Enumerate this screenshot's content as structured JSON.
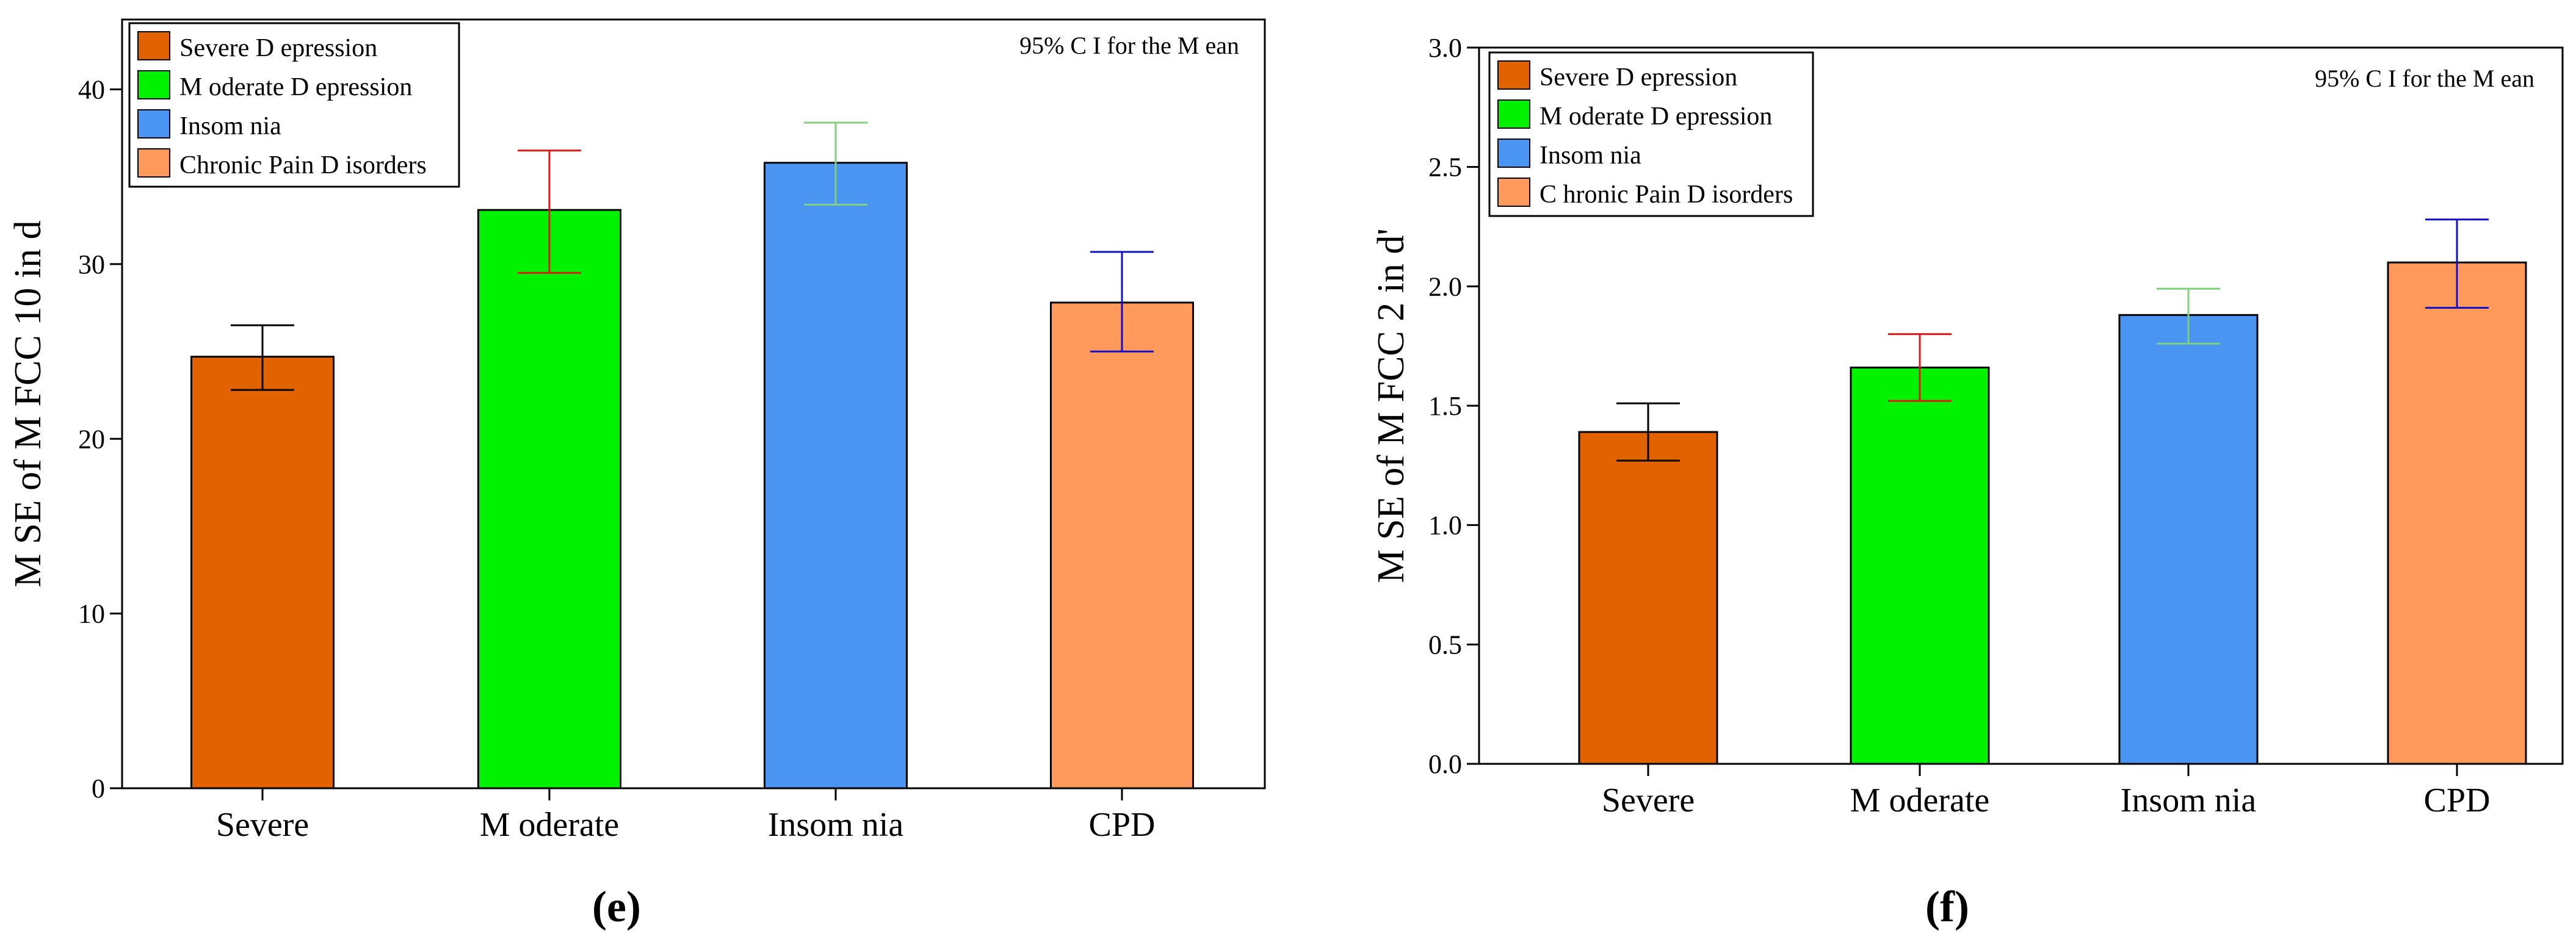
{
  "chart_data": [
    {
      "type": "bar",
      "panel_label": "(e)",
      "categories": [
        "Severe",
        "M oderate",
        "Insom nia",
        "CPD"
      ],
      "values": [
        24.7,
        33.1,
        35.8,
        27.8
      ],
      "ci_low": [
        22.8,
        29.5,
        33.4,
        25.0
      ],
      "ci_high": [
        26.5,
        36.5,
        38.1,
        30.7
      ],
      "bar_colors": [
        "#E36200",
        "#00F200",
        "#4A95F2",
        "#FF9A5C"
      ],
      "errorbar_colors": [
        "#000000",
        "#E01818",
        "#7FD07F",
        "#1010C8"
      ],
      "ylabel": "M SE of M FCC 10 in d",
      "xlabel": "",
      "ylim": [
        0,
        44
      ],
      "yticks": [
        0,
        10,
        20,
        30,
        40
      ],
      "ytick_labels": [
        "0",
        "10",
        "20",
        "30",
        "40"
      ],
      "annotation": "95%  C I for the M ean",
      "legend_position": "top-left",
      "legend": [
        "Severe D epression",
        "M oderate D epression",
        "Insom nia",
        "Chronic Pain D isorders"
      ]
    },
    {
      "type": "bar",
      "panel_label": "(f)",
      "categories": [
        "Severe",
        "M oderate",
        "Insom nia",
        "CPD"
      ],
      "values": [
        1.39,
        1.66,
        1.88,
        2.1
      ],
      "ci_low": [
        1.27,
        1.52,
        1.76,
        1.91
      ],
      "ci_high": [
        1.51,
        1.8,
        1.99,
        2.28
      ],
      "bar_colors": [
        "#E36200",
        "#00F200",
        "#4A95F2",
        "#FF9A5C"
      ],
      "errorbar_colors": [
        "#000000",
        "#E01818",
        "#7FD07F",
        "#1010C8"
      ],
      "ylabel": "M SE of M FCC 2 in d'",
      "xlabel": "",
      "ylim": [
        0,
        3.0
      ],
      "yticks": [
        0,
        0.5,
        1.0,
        1.5,
        2.0,
        2.5,
        3.0
      ],
      "ytick_labels": [
        "0.0",
        "0.5",
        "1.0",
        "1.5",
        "2.0",
        "2.5",
        "3.0"
      ],
      "annotation": "95%  C I for the M ean",
      "legend_position": "top-left",
      "legend": [
        "Severe D epression",
        "M oderate D epression",
        "Insom nia",
        "C hronic Pain D isorders"
      ]
    }
  ]
}
